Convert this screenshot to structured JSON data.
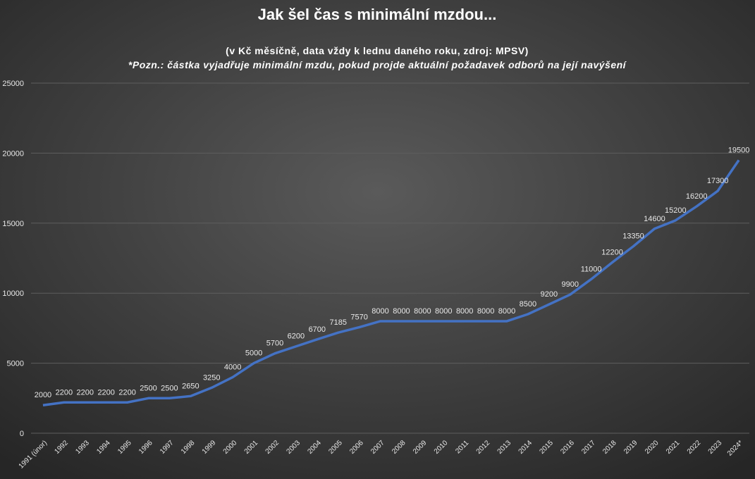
{
  "chart_data": {
    "type": "line",
    "title": "Jak šel čas s minimální mzdou...",
    "subtitle": "(v Kč měsíčně, data vždy k lednu daného roku, zdroj: MPSV)",
    "note": "*Pozn.: částka vyjadřuje minimální mzdu, pokud projde aktuální požadavek odborů na její navýšení",
    "categories": [
      "1991 (únor)",
      "1992",
      "1993",
      "1994",
      "1995",
      "1996",
      "1997",
      "1998",
      "1999",
      "2000",
      "2001",
      "2002",
      "2003",
      "2004",
      "2005",
      "2006",
      "2007",
      "2008",
      "2009",
      "2010",
      "2011",
      "2012",
      "2013",
      "2014",
      "2015",
      "2016",
      "2017",
      "2018",
      "2019",
      "2020",
      "2021",
      "2022",
      "2023",
      "2024*"
    ],
    "values": [
      2000,
      2200,
      2200,
      2200,
      2200,
      2500,
      2500,
      2650,
      3250,
      4000,
      5000,
      5700,
      6200,
      6700,
      7185,
      7570,
      8000,
      8000,
      8000,
      8000,
      8000,
      8000,
      8000,
      8500,
      9200,
      9900,
      11000,
      12200,
      13350,
      14600,
      15200,
      16200,
      17300,
      19500
    ],
    "color": "#4472c4",
    "ylim": [
      0,
      25000
    ],
    "yticks": [
      0,
      5000,
      10000,
      15000,
      20000,
      25000
    ],
    "grid": true
  }
}
